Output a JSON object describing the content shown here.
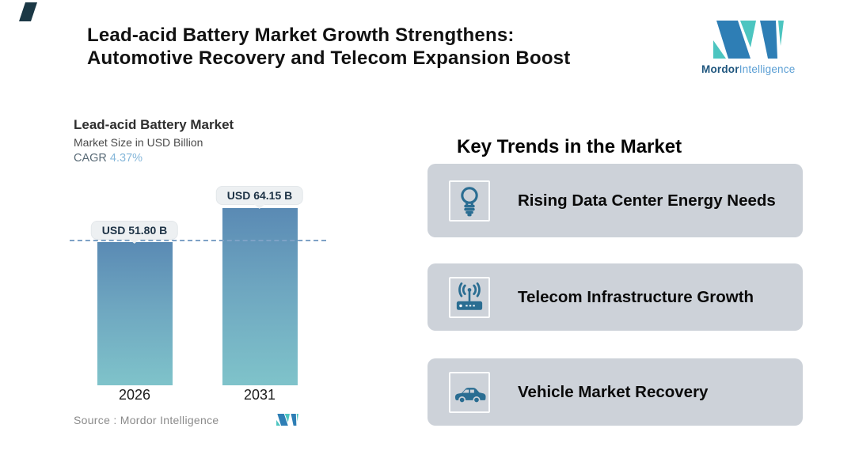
{
  "header": {
    "title_line1": "Lead-acid Battery Market Growth Strengthens:",
    "title_line2": "Automotive Recovery and Telecom Expansion Boost"
  },
  "logo": {
    "word_bold": "Mordor",
    "word_light": "Intelligence"
  },
  "chart": {
    "title": "Lead-acid Battery Market",
    "subtitle": "Market Size in USD Billion",
    "cagr_label": "CAGR ",
    "source_label": "Source :  ",
    "source_value": "Mordor Intelligence"
  },
  "chart_data": {
    "type": "bar",
    "title": "Lead-acid Battery Market",
    "subtitle": "Market Size in USD Billion",
    "cagr": "4.37%",
    "categories": [
      "2026",
      "2031"
    ],
    "values": [
      51.8,
      64.15
    ],
    "value_labels": [
      "USD 51.80 B",
      "USD 64.15 B"
    ],
    "unit": "USD Billion",
    "ylim": [
      0,
      64.15
    ],
    "reference_dashed_line_at": 51.8,
    "bar_gradient_top": "#5a8ab4",
    "bar_gradient_bottom": "#7fc3ca",
    "dashed_line_color": "#7ea2c6"
  },
  "trends": {
    "heading": "Key Trends in the Market",
    "cards": [
      {
        "icon": "lightbulb-icon",
        "label": "Rising Data Center Energy Needs"
      },
      {
        "icon": "telecom-router-icon",
        "label": "Telecom Infrastructure Growth"
      },
      {
        "icon": "car-icon",
        "label": "Vehicle Market Recovery"
      }
    ]
  },
  "colors": {
    "logo_blue": "#2e7eb5",
    "logo_teal": "#4cc5c0",
    "card_background": "#cdd2d9",
    "trend_icon": "#2a6d92",
    "cagr_value": "#85b7da",
    "corner_accent": "#1b3845"
  }
}
